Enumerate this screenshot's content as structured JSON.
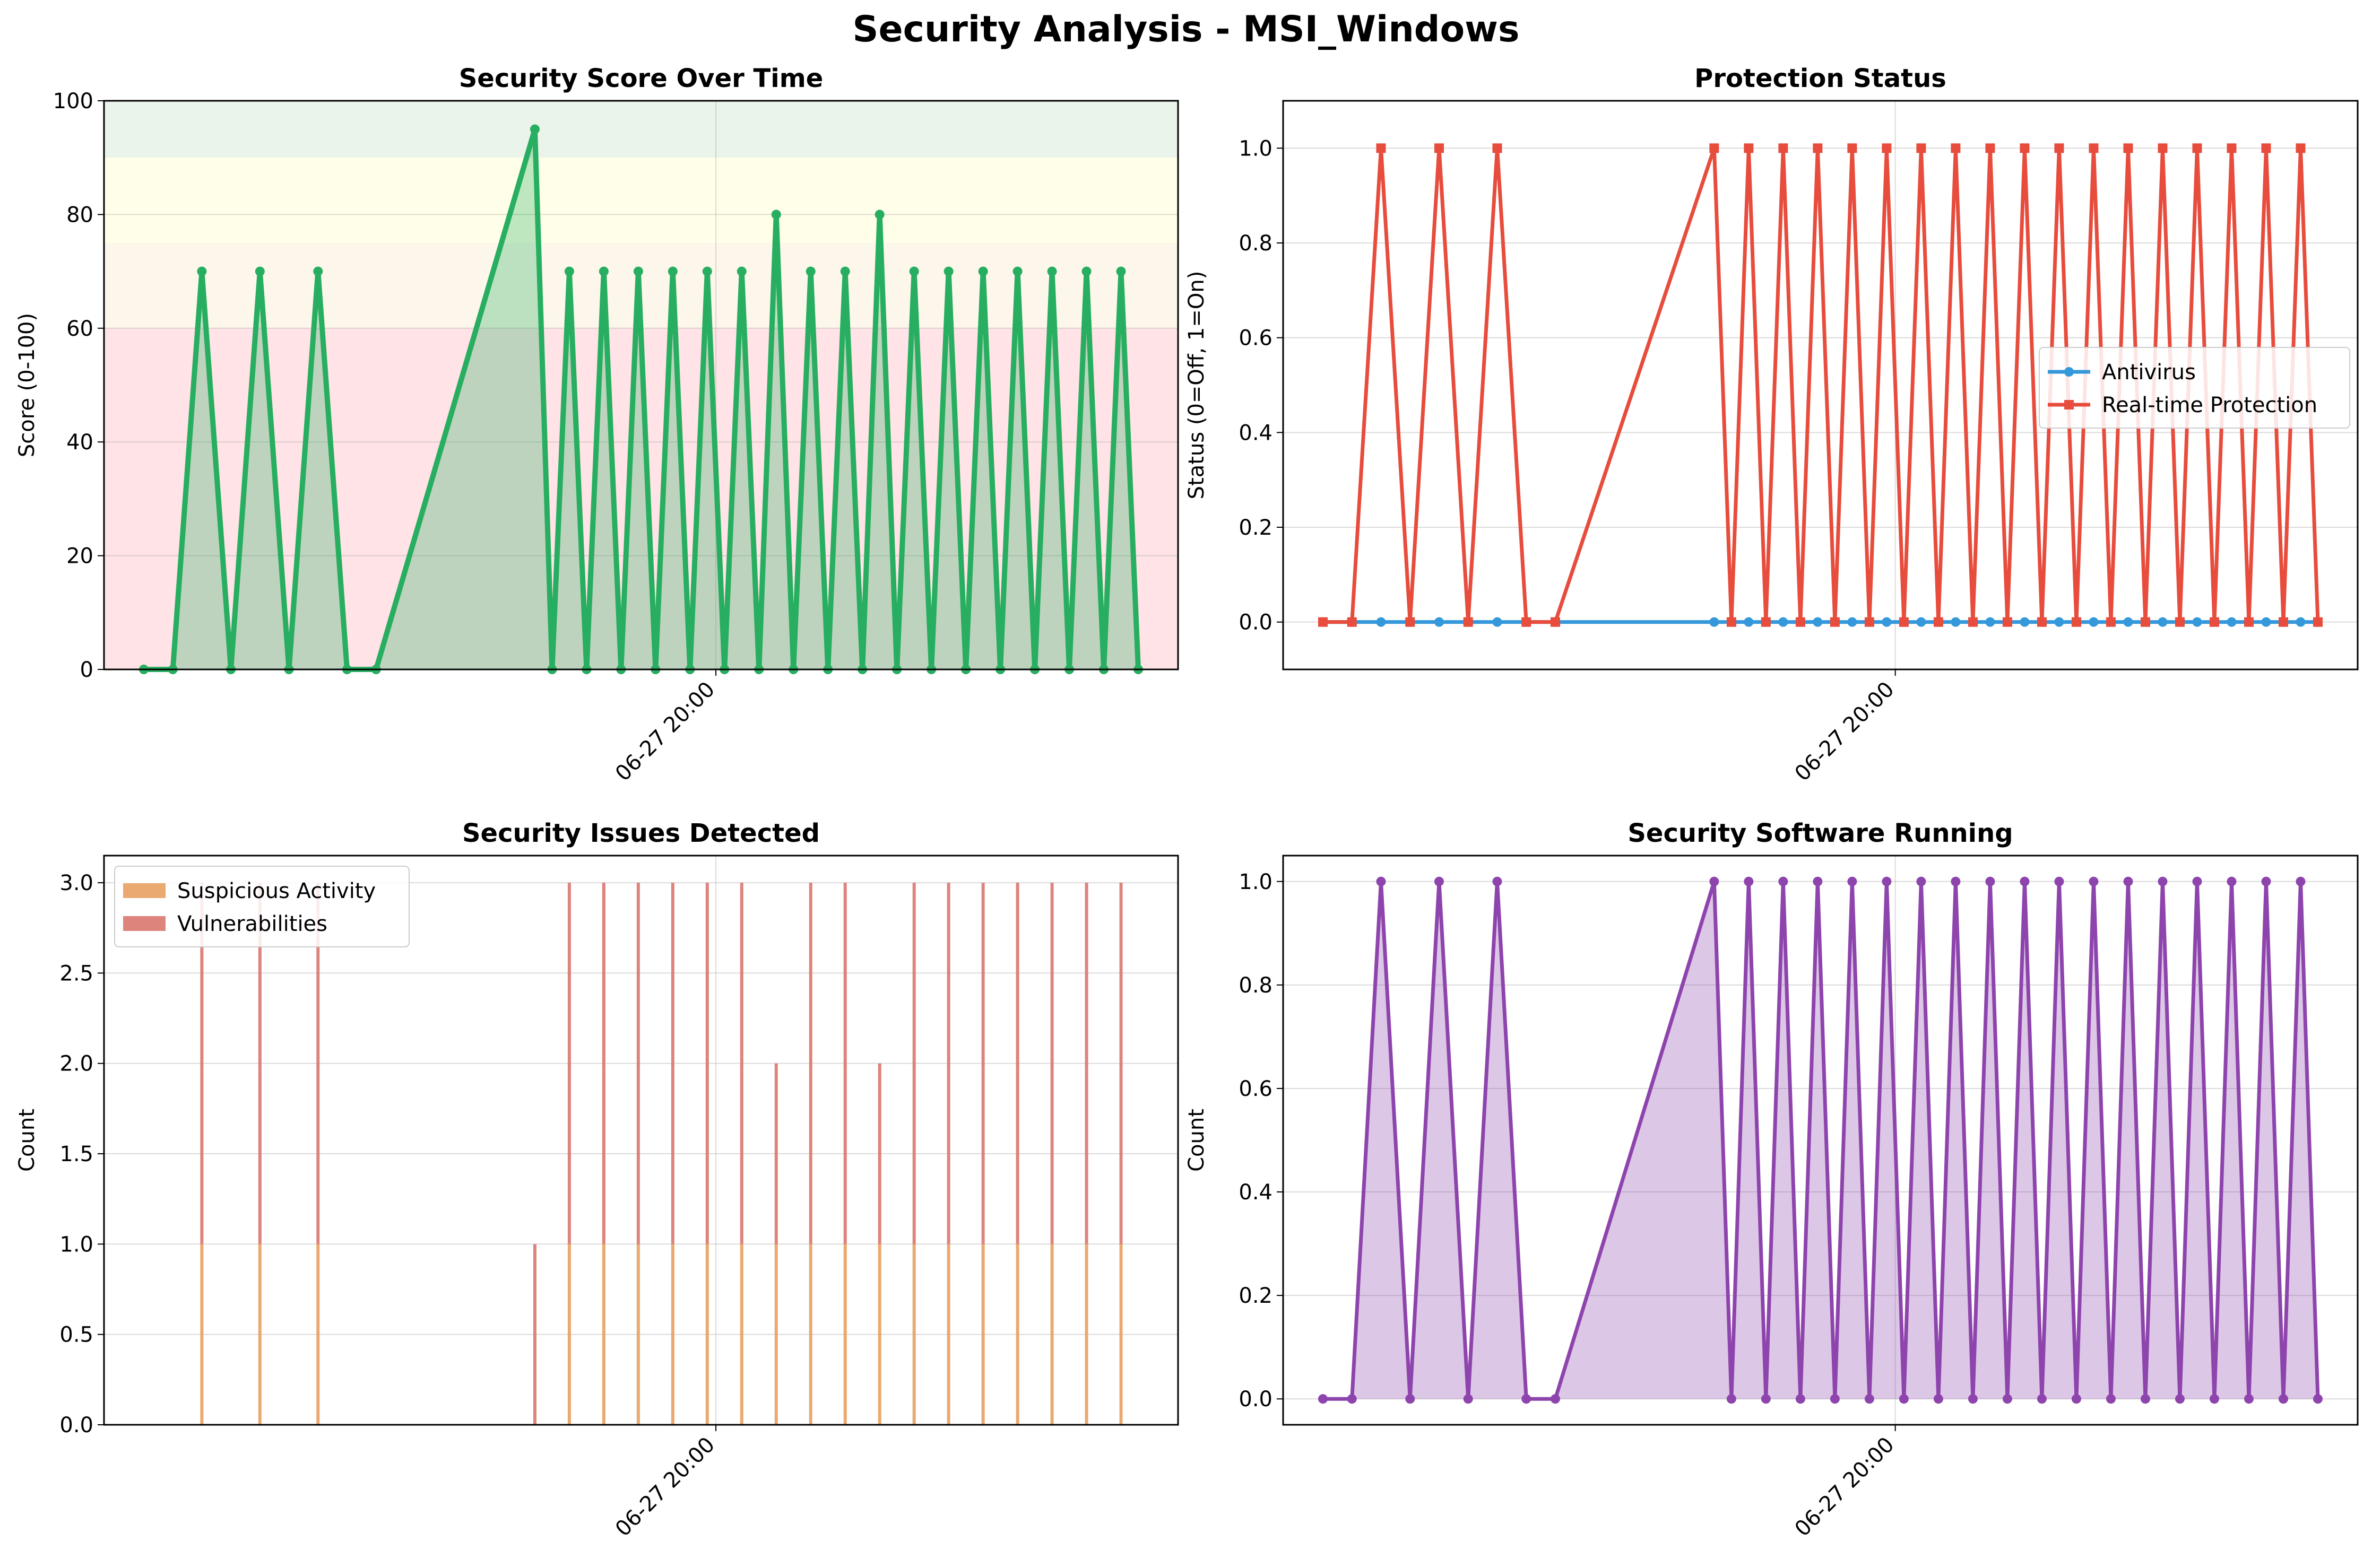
{
  "suptitle": "Security Analysis - MSI_Windows",
  "x_tick_label": "06-27 20:00",
  "x_tick_position_run": 19.5,
  "chart_data": [
    {
      "type": "line",
      "title": "Security Score Over Time",
      "ylabel": "Score (0-100)",
      "ylim": [
        0,
        100
      ],
      "yticks": [
        0,
        20,
        40,
        60,
        80,
        100
      ],
      "grid": true,
      "bands": [
        {
          "from": 0,
          "to": 60,
          "color": "#ff9aa5"
        },
        {
          "from": 60,
          "to": 75,
          "color": "#f8e0b8"
        },
        {
          "from": 75,
          "to": 90,
          "color": "#ffffb0"
        },
        {
          "from": 90,
          "to": 100,
          "color": "#b4d9b4"
        }
      ],
      "x_ticks": [
        "06-27 20:00"
      ],
      "series": [
        {
          "color": "#27ae60",
          "fill": true,
          "values": [
            0,
            0,
            70,
            0,
            70,
            0,
            70,
            0,
            0,
            95,
            0,
            70,
            0,
            70,
            0,
            70,
            0,
            70,
            0,
            70,
            0,
            70,
            0,
            80,
            0,
            70,
            0,
            70,
            0,
            80,
            0,
            70,
            0,
            70,
            0,
            70,
            0,
            70,
            0,
            70,
            0,
            70,
            0,
            70,
            0
          ]
        }
      ]
    },
    {
      "type": "line",
      "title": "Protection Status",
      "ylabel": "Status (0=Off, 1=On)",
      "ylim": [
        -0.1,
        1.1
      ],
      "yticks": [
        0.0,
        0.2,
        0.4,
        0.6,
        0.8,
        1.0
      ],
      "grid": true,
      "legend_position": "center-right",
      "x_ticks": [
        "06-27 20:00"
      ],
      "series": [
        {
          "name": "Antivirus",
          "color": "#3498db",
          "marker": "circle",
          "values": [
            0,
            0,
            0,
            0,
            0,
            0,
            0,
            0,
            0,
            0,
            0,
            0,
            0,
            0,
            0,
            0,
            0,
            0,
            0,
            0,
            0,
            0,
            0,
            0,
            0,
            0,
            0,
            0,
            0,
            0,
            0,
            0,
            0,
            0,
            0,
            0,
            0,
            0,
            0,
            0,
            0,
            0,
            0,
            0,
            0
          ]
        },
        {
          "name": "Real-time Protection",
          "color": "#e74c3c",
          "marker": "square",
          "values": [
            0,
            0,
            1,
            0,
            1,
            0,
            1,
            0,
            0,
            1,
            0,
            1,
            0,
            1,
            0,
            1,
            0,
            1,
            0,
            1,
            0,
            1,
            0,
            1,
            0,
            1,
            0,
            1,
            0,
            1,
            0,
            1,
            0,
            1,
            0,
            1,
            0,
            1,
            0,
            1,
            0,
            1,
            0,
            1,
            0
          ]
        }
      ]
    },
    {
      "type": "bar",
      "stacked": true,
      "title": "Security Issues Detected",
      "ylabel": "Count",
      "ylim": [
        0,
        3.15
      ],
      "yticks": [
        0.0,
        0.5,
        1.0,
        1.5,
        2.0,
        2.5,
        3.0
      ],
      "grid": true,
      "legend_position": "top-left",
      "x_ticks": [
        "06-27 20:00"
      ],
      "series": [
        {
          "name": "Suspicious Activity",
          "color": "#e8a060",
          "values": [
            0,
            0,
            1,
            0,
            1,
            0,
            1,
            0,
            0,
            0,
            0,
            1,
            0,
            1,
            0,
            1,
            0,
            1,
            0,
            1,
            0,
            1,
            0,
            1,
            0,
            1,
            0,
            1,
            0,
            1,
            0,
            1,
            0,
            1,
            0,
            1,
            0,
            1,
            0,
            1,
            0,
            1,
            0,
            1,
            0
          ]
        },
        {
          "name": "Vulnerabilities",
          "color": "#d9776f",
          "values": [
            0,
            0,
            2,
            0,
            2,
            0,
            2,
            0,
            0,
            1,
            0,
            2,
            0,
            2,
            0,
            2,
            0,
            2,
            0,
            2,
            0,
            2,
            0,
            1,
            0,
            2,
            0,
            2,
            0,
            1,
            0,
            2,
            0,
            2,
            0,
            2,
            0,
            2,
            0,
            2,
            0,
            2,
            0,
            2,
            0
          ]
        }
      ]
    },
    {
      "type": "line",
      "title": "Security Software Running",
      "ylabel": "Count",
      "ylim": [
        -0.05,
        1.05
      ],
      "yticks": [
        0.0,
        0.2,
        0.4,
        0.6,
        0.8,
        1.0
      ],
      "grid": true,
      "x_ticks": [
        "06-27 20:00"
      ],
      "series": [
        {
          "color": "#8e44ad",
          "fill": true,
          "values": [
            0,
            0,
            1,
            0,
            1,
            0,
            1,
            0,
            0,
            1,
            0,
            1,
            0,
            1,
            0,
            1,
            0,
            1,
            0,
            1,
            0,
            1,
            0,
            1,
            0,
            1,
            0,
            1,
            0,
            1,
            0,
            1,
            0,
            1,
            0,
            1,
            0,
            1,
            0,
            1,
            0,
            1,
            0,
            1,
            0
          ]
        }
      ]
    }
  ]
}
